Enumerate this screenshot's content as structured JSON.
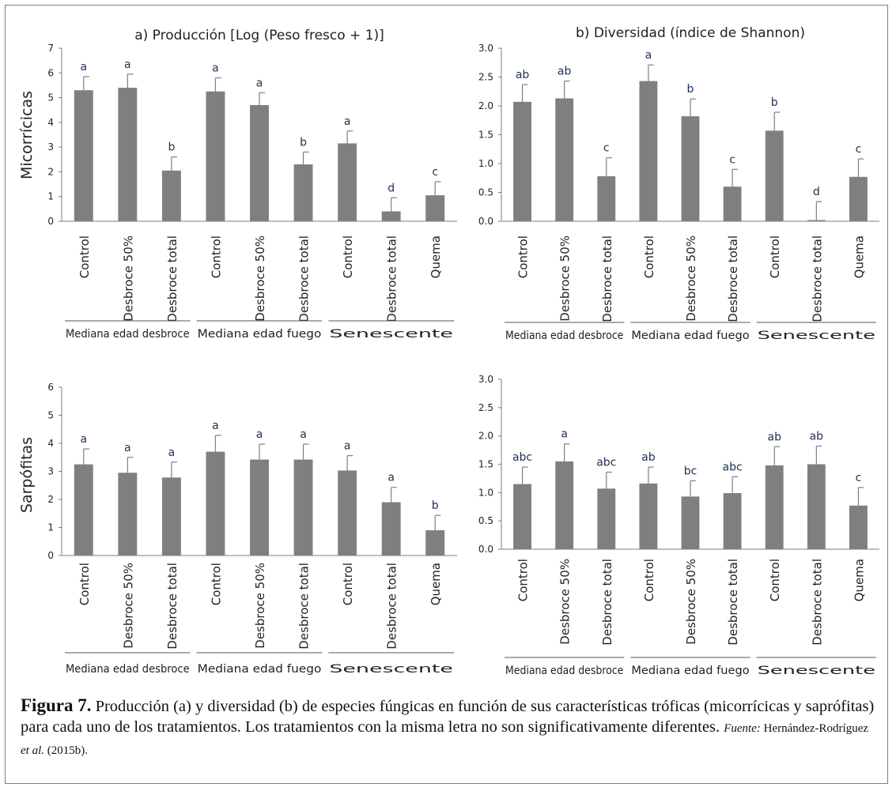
{
  "chart_data": [
    {
      "type": "bar",
      "title": "a) Producción [Log (Peso fresco + 1)]",
      "row_label": "Micorrícicas",
      "categories": [
        "Control",
        "Desbroce 50%",
        "Desbroce total",
        "Control",
        "Desbroce 50%",
        "Desbroce total",
        "Control",
        "Desbroce total",
        "Quema"
      ],
      "values": [
        5.3,
        5.4,
        2.05,
        5.25,
        4.7,
        2.3,
        3.15,
        0.4,
        1.05
      ],
      "error": [
        0.55,
        0.55,
        0.55,
        0.55,
        0.5,
        0.5,
        0.5,
        0.55,
        0.55
      ],
      "letters": [
        "a",
        "a",
        "b",
        "a",
        "a",
        "b",
        "a",
        "d",
        "c"
      ],
      "ylim": [
        0,
        7
      ],
      "yticks": [
        "0",
        "1",
        "2",
        "3",
        "4",
        "5",
        "6",
        "7"
      ],
      "groups": [
        "Mediana edad desbroce",
        "Mediana edad fuego",
        "Senescente"
      ],
      "xlabel": "",
      "ylabel": ""
    },
    {
      "type": "bar",
      "title": "b) Diversidad (índice de Shannon)",
      "row_label": "",
      "categories": [
        "Control",
        "Desbroce 50%",
        "Desbroce total",
        "Control",
        "Desbroce 50%",
        "Desbroce total",
        "Control",
        "Desbroce total",
        "Quema"
      ],
      "values": [
        2.07,
        2.13,
        0.78,
        2.43,
        1.82,
        0.6,
        1.57,
        0.02,
        0.77
      ],
      "error": [
        0.3,
        0.3,
        0.32,
        0.28,
        0.3,
        0.3,
        0.32,
        0.32,
        0.31
      ],
      "letters": [
        "ab",
        "ab",
        "c",
        "a",
        "b",
        "c",
        "b",
        "d",
        "c"
      ],
      "ylim": [
        0,
        3
      ],
      "yticks": [
        "0.0",
        "0.5",
        "1.0",
        "1.5",
        "2.0",
        "2.5",
        "3.0"
      ],
      "groups": [
        "Mediana edad desbroce",
        "Mediana edad fuego",
        "Senescente"
      ],
      "xlabel": "",
      "ylabel": ""
    },
    {
      "type": "bar",
      "title": "",
      "row_label": "Sarpófitas",
      "categories": [
        "Control",
        "Desbroce 50%",
        "Desbroce total",
        "Control",
        "Desbroce 50%",
        "Desbroce total",
        "Control",
        "Desbroce total",
        "Quema"
      ],
      "values": [
        3.25,
        2.95,
        2.78,
        3.7,
        3.42,
        3.42,
        3.03,
        1.9,
        0.9
      ],
      "error": [
        0.55,
        0.55,
        0.55,
        0.58,
        0.55,
        0.55,
        0.53,
        0.53,
        0.53
      ],
      "letters": [
        "a",
        "a",
        "a",
        "a",
        "a",
        "a",
        "a",
        "a",
        "b"
      ],
      "ylim": [
        0,
        6
      ],
      "yticks": [
        "0",
        "1",
        "2",
        "3",
        "4",
        "5",
        "6"
      ],
      "groups": [
        "Mediana edad desbroce",
        "Mediana edad fuego",
        "Senescente"
      ],
      "xlabel": "",
      "ylabel": ""
    },
    {
      "type": "bar",
      "title": "",
      "row_label": "",
      "categories": [
        "Control",
        "Desbroce 50%",
        "Desbroce total",
        "Control",
        "Desbroce 50%",
        "Desbroce total",
        "Control",
        "Desbroce total",
        "Quema"
      ],
      "values": [
        1.15,
        1.55,
        1.07,
        1.16,
        0.93,
        0.99,
        1.48,
        1.5,
        0.77
      ],
      "error": [
        0.3,
        0.31,
        0.29,
        0.29,
        0.28,
        0.29,
        0.33,
        0.32,
        0.32
      ],
      "letters": [
        "abc",
        "a",
        "abc",
        "ab",
        "bc",
        "abc",
        "ab",
        "ab",
        "c"
      ],
      "ylim": [
        0,
        3
      ],
      "yticks": [
        "0.0",
        "0.5",
        "1.0",
        "1.5",
        "2.0",
        "2.5",
        "3.0"
      ],
      "groups": [
        "Mediana edad desbroce",
        "Mediana edad fuego",
        "Senescente"
      ],
      "xlabel": "",
      "ylabel": ""
    }
  ],
  "caption": {
    "label": "Figura 7.",
    "text": " Producción (a) y diversidad (b) de especies fúngicas en función de sus características tróficas (micorrícicas y saprófitas) para cada uno de los tratamientos. Los tratamientos con la misma letra no son significativamente diferentes. ",
    "source_label": "Fuente:",
    "source_author": " Hernández-Rodríguez ",
    "source_etal": "et al.",
    "source_year": " (2015b)."
  },
  "colors": {
    "bar": "#7f7f7f",
    "axis": "#7f7f7f",
    "text": "#222222",
    "letters": "#1f2f55"
  }
}
